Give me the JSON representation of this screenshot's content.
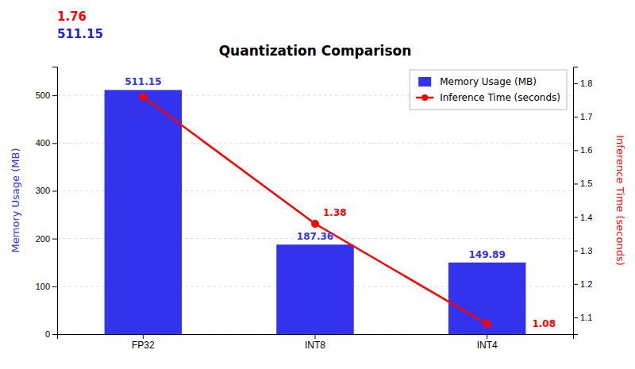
{
  "chart_data": {
    "type": "bar",
    "title": "Quantization Comparison",
    "annotations": [
      {
        "text": "1.76",
        "color": "red"
      },
      {
        "text": "511.15",
        "color": "#2222cc"
      }
    ],
    "categories": [
      "FP32",
      "INT8",
      "INT4"
    ],
    "series": [
      {
        "name": "Memory Usage (MB)",
        "type": "bar",
        "color": "#3333ee",
        "values": [
          511.15,
          187.36,
          149.89
        ],
        "data_labels": true
      },
      {
        "name": "Inference Time (seconds)",
        "type": "line",
        "axis": "y2",
        "color": "red",
        "marker": "circle",
        "values": [
          1.76,
          1.38,
          1.08
        ],
        "data_labels": true,
        "value_labels": [
          null,
          "1.38",
          "1.08"
        ]
      }
    ],
    "y_label": "Memory Usage (MB)",
    "y2_label": "Inference Time (seconds)",
    "ylim": [
      0,
      560
    ],
    "yticks": [
      0,
      100,
      200,
      300,
      400,
      500
    ],
    "y2lim": [
      1.05,
      1.85
    ],
    "y2ticks": [
      1.1,
      1.2,
      1.3,
      1.4,
      1.5,
      1.6,
      1.7,
      1.8
    ],
    "grid": true,
    "legend": "upper right"
  }
}
